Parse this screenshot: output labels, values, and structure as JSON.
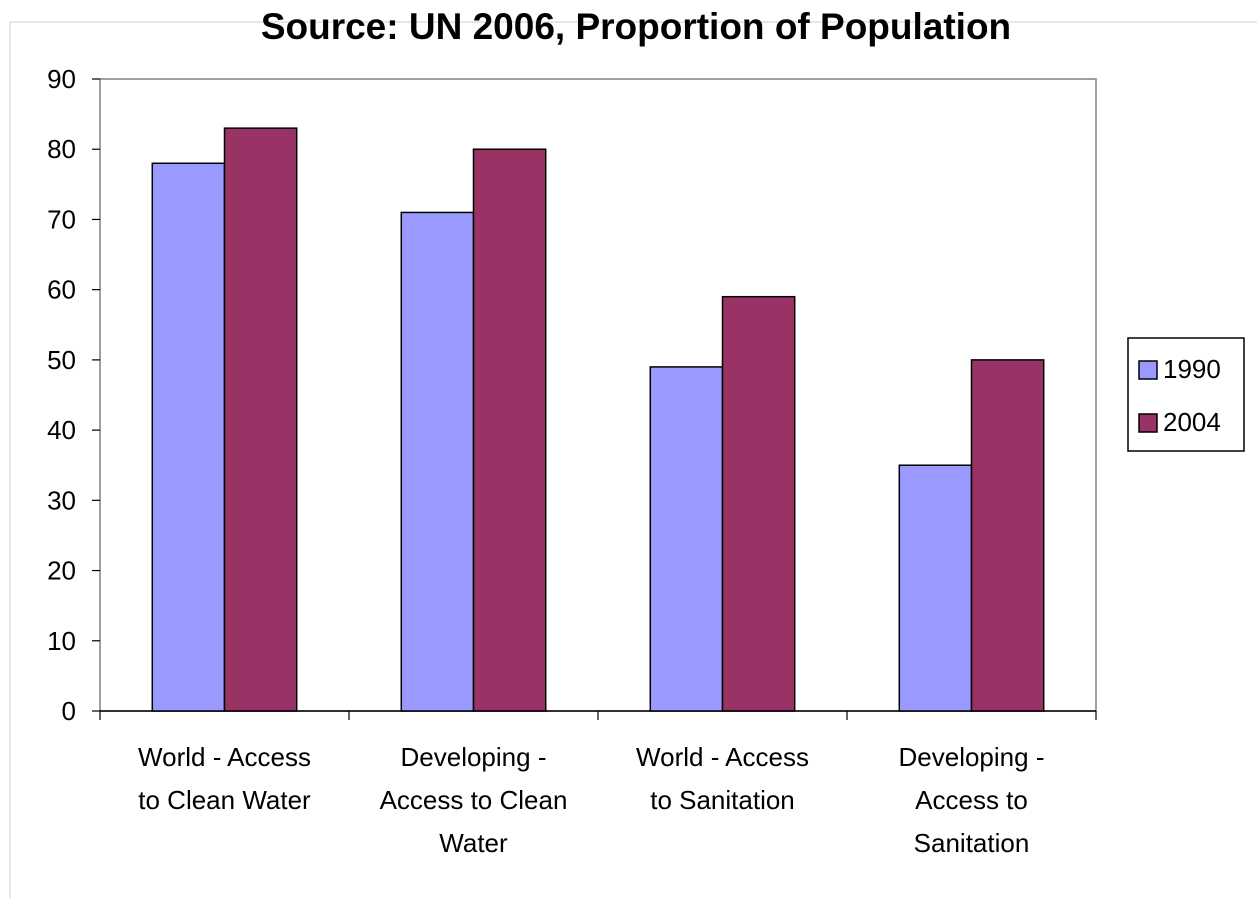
{
  "chart_data": {
    "type": "bar",
    "title": "Source: UN 2006, Proportion of Population",
    "xlabel": "",
    "ylabel": "",
    "categories": [
      [
        "World - Access",
        "to Clean Water"
      ],
      [
        "Developing -",
        "Access to Clean",
        "Water"
      ],
      [
        "World - Access",
        "to Sanitation"
      ],
      [
        "Developing -",
        "Access to",
        "Sanitation"
      ]
    ],
    "series": [
      {
        "name": "1990",
        "color": "#9999ff",
        "values": [
          78,
          71,
          49,
          35
        ]
      },
      {
        "name": "2004",
        "color": "#993366",
        "values": [
          83,
          80,
          59,
          50
        ]
      }
    ],
    "ylim": [
      0,
      90
    ],
    "yticks": [
      0,
      10,
      20,
      30,
      40,
      50,
      60,
      70,
      80,
      90
    ],
    "grid": false,
    "legend": {
      "position": "right"
    }
  }
}
